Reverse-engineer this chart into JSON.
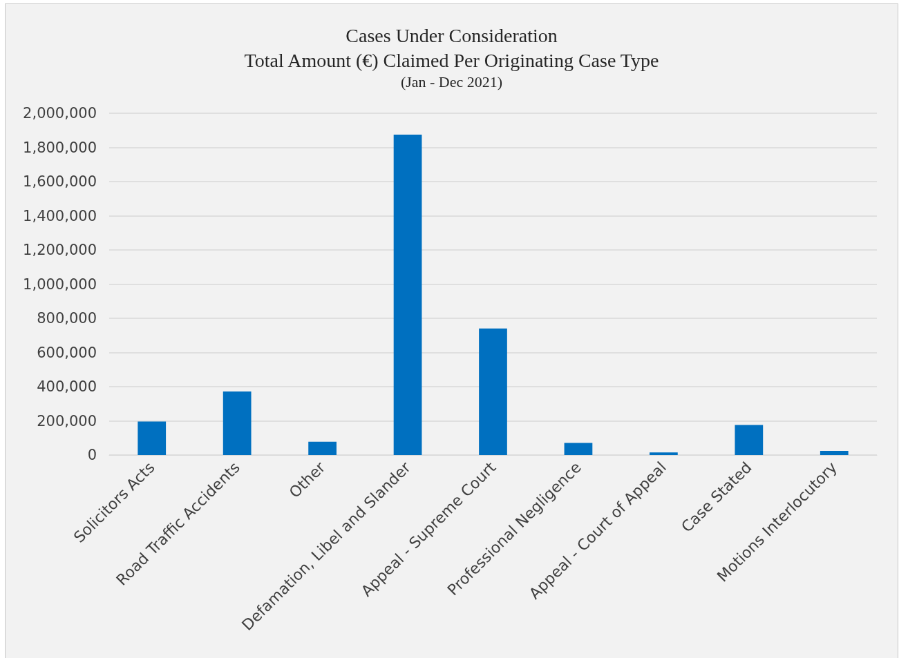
{
  "chart_data": {
    "type": "bar",
    "title": "Cases Under Consideration\nTotal Amount (€) Claimed Per Originating Case Type",
    "subtitle": "(Jan - Dec 2021)",
    "categories": [
      "Solicitors Acts",
      "Road Traffic Accidents",
      "Other",
      "Defamation, Libel and Slander",
      "Appeal - Supreme Court",
      "Professional Negligence",
      "Appeal - Court of Appeal",
      "Case Stated",
      "Motions Interlocutory"
    ],
    "values": [
      196000,
      372000,
      78000,
      1875000,
      740000,
      71000,
      15000,
      176000,
      24000
    ],
    "color": "#0070c0",
    "ylim": [
      0,
      2000000
    ],
    "yticks": [
      0,
      {
        "value": 200000,
        "label": "200,000"
      },
      {
        "value": 400000,
        "label": "400,000"
      },
      {
        "value": 600000,
        "label": "600,000"
      },
      {
        "value": 800000,
        "label": "800,000"
      },
      {
        "value": 1000000,
        "label": "1,000,000"
      },
      {
        "value": 1200000,
        "label": "1,200,000"
      },
      {
        "value": 1400000,
        "label": "1,400,000"
      },
      {
        "value": 1600000,
        "label": "1,600,000"
      },
      {
        "value": 1800000,
        "label": "1,800,000"
      },
      {
        "value": 2000000,
        "label": "2,000,000"
      }
    ],
    "grid": "y"
  }
}
